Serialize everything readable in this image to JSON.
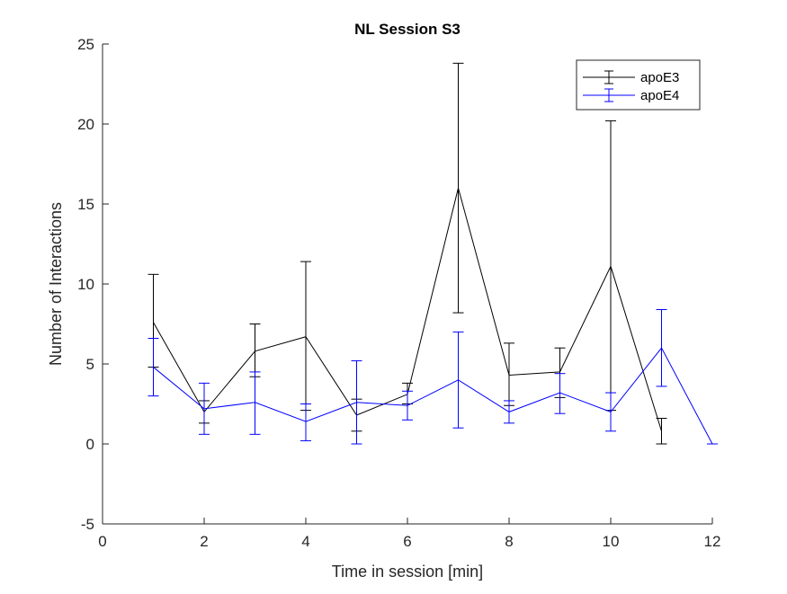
{
  "chart_data": {
    "type": "line",
    "title": "NL Session S3",
    "xlabel": "Time in session [min]",
    "ylabel": "Number of Interactions",
    "xlim": [
      0,
      12
    ],
    "ylim": [
      -5,
      25
    ],
    "xticks": [
      0,
      2,
      4,
      6,
      8,
      10,
      12
    ],
    "yticks": [
      -5,
      0,
      5,
      10,
      15,
      20,
      25
    ],
    "grid": false,
    "legend_location": "top-right",
    "error_bars": true,
    "series": [
      {
        "name": "apoE3",
        "color": "#000000",
        "x": [
          1,
          2,
          3,
          4,
          5,
          6,
          7,
          8,
          9,
          10,
          11
        ],
        "y": [
          7.6,
          2.0,
          5.8,
          6.7,
          1.8,
          3.1,
          16.0,
          4.3,
          4.5,
          11.1,
          0.8
        ],
        "lower": [
          4.8,
          1.3,
          4.2,
          2.1,
          0.8,
          2.5,
          8.2,
          2.4,
          2.9,
          2.1,
          0.0
        ],
        "upper": [
          10.6,
          2.7,
          7.5,
          11.4,
          2.8,
          3.8,
          23.8,
          6.3,
          6.0,
          20.2,
          1.6
        ]
      },
      {
        "name": "apoE4",
        "color": "#0000ff",
        "x": [
          1,
          2,
          3,
          4,
          5,
          6,
          7,
          8,
          9,
          10,
          11,
          12
        ],
        "y": [
          4.8,
          2.2,
          2.6,
          1.4,
          2.6,
          2.4,
          4.0,
          2.0,
          3.2,
          2.0,
          6.0,
          0.0
        ],
        "lower": [
          3.0,
          0.6,
          0.6,
          0.2,
          0.0,
          1.5,
          1.0,
          1.3,
          1.9,
          0.8,
          3.6,
          0.0
        ],
        "upper": [
          6.6,
          3.8,
          4.5,
          2.5,
          5.2,
          3.3,
          7.0,
          2.7,
          4.4,
          3.2,
          8.4,
          0.0
        ]
      }
    ]
  }
}
